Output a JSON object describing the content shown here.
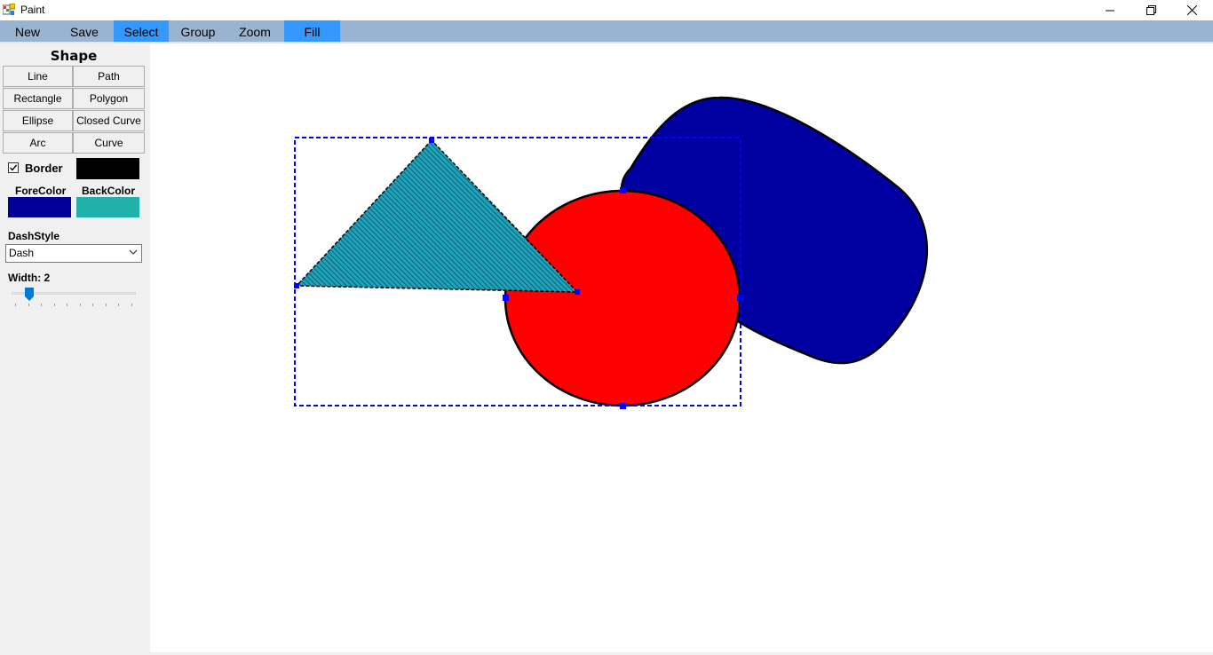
{
  "window": {
    "title": "Paint"
  },
  "menu": {
    "items": [
      {
        "label": "New",
        "active": false
      },
      {
        "label": "Save",
        "active": false
      },
      {
        "label": "Select",
        "active": true
      },
      {
        "label": "Group",
        "active": false
      },
      {
        "label": "Zoom",
        "active": false
      },
      {
        "label": "Fill",
        "active": true
      }
    ]
  },
  "panel": {
    "title": "Shape",
    "shapes": [
      "Line",
      "Path",
      "Rectangle",
      "Polygon",
      "Ellipse",
      "Closed Curve",
      "Arc",
      "Curve"
    ],
    "border": {
      "label": "Border",
      "checked": true,
      "color": "#000000"
    },
    "fore_color": {
      "label": "ForeColor",
      "color": "#000099"
    },
    "back_color": {
      "label": "BackColor",
      "color": "#20b2aa"
    },
    "dash_style": {
      "label": "DashStyle",
      "value": "Dash"
    },
    "width": {
      "label": "Width: 2",
      "value": 2,
      "min": 1,
      "max": 10
    }
  },
  "canvas": {
    "colors": {
      "blob_fill": "#0000a0",
      "circle_fill": "#ff0000",
      "triangle_fill": "#20a0b8",
      "selection": "#0000ff",
      "outline": "#000000"
    }
  }
}
